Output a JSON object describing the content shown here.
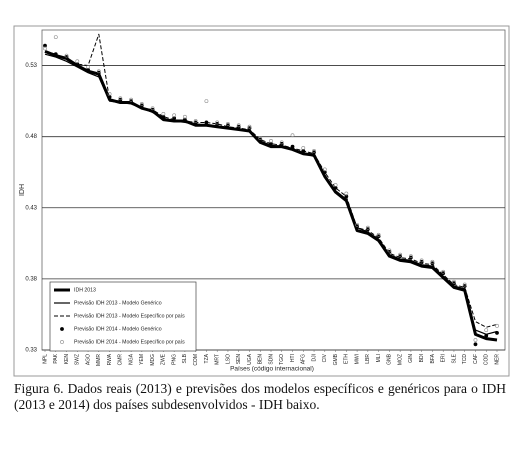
{
  "chart_data": {
    "type": "line",
    "y_label": "IDH",
    "x_label": "Países (código internacional)",
    "caption": "Figura 6. Dados reais (2013) e previsões dos modelos específicos e genéricos para o IDH (2013 e 2014) dos países subdesenvolvidos - IDH baixo.",
    "categories": [
      "NPL",
      "PAK",
      "KEN",
      "SWZ",
      "AGO",
      "MMR",
      "RWA",
      "CMR",
      "NGA",
      "YEM",
      "MDG",
      "ZWE",
      "PNG",
      "SLB",
      "COM",
      "TZA",
      "MRT",
      "LSO",
      "SEN",
      "UGA",
      "BEN",
      "SDN",
      "TGO",
      "HTI",
      "AFG",
      "DJI",
      "CIV",
      "GMB",
      "ETH",
      "MWI",
      "LBR",
      "MLI",
      "GNB",
      "MOZ",
      "GIN",
      "BDI",
      "BFA",
      "ERI",
      "SLE",
      "TCD",
      "CAF",
      "COD",
      "NER"
    ],
    "ylim": [
      0.33,
      0.555
    ],
    "yticks": [
      0.33,
      0.38,
      0.43,
      0.48,
      0.53
    ],
    "grid": true,
    "legend": "lower left",
    "series": [
      {
        "name": "IDH 2013",
        "color": "#000000",
        "kind": "line",
        "width": 3,
        "dash": false,
        "values": [
          0.54,
          0.537,
          0.535,
          0.53,
          0.526,
          0.524,
          0.506,
          0.504,
          0.504,
          0.5,
          0.498,
          0.492,
          0.491,
          0.491,
          0.488,
          0.488,
          0.487,
          0.486,
          0.485,
          0.484,
          0.476,
          0.473,
          0.473,
          0.471,
          0.468,
          0.467,
          0.452,
          0.441,
          0.435,
          0.414,
          0.412,
          0.407,
          0.396,
          0.393,
          0.392,
          0.389,
          0.388,
          0.381,
          0.374,
          0.372,
          0.341,
          0.338,
          0.337
        ]
      },
      {
        "name": "Previsão IDH 2013 - Modelo Genérico",
        "color": "#000000",
        "kind": "line",
        "width": 1.2,
        "dash": false,
        "values": [
          0.538,
          0.536,
          0.533,
          0.529,
          0.525,
          0.522,
          0.505,
          0.504,
          0.503,
          0.5,
          0.497,
          0.493,
          0.491,
          0.49,
          0.489,
          0.488,
          0.487,
          0.486,
          0.485,
          0.484,
          0.477,
          0.474,
          0.473,
          0.471,
          0.469,
          0.466,
          0.453,
          0.442,
          0.436,
          0.416,
          0.413,
          0.408,
          0.397,
          0.394,
          0.393,
          0.39,
          0.389,
          0.382,
          0.375,
          0.373,
          0.344,
          0.341,
          0.343
        ]
      },
      {
        "name": "Previsão IDH 2013 - Modelo Específico por país",
        "color": "#000000",
        "kind": "line",
        "width": 1,
        "dash": true,
        "values": [
          0.54,
          0.538,
          0.534,
          0.531,
          0.53,
          0.552,
          0.506,
          0.505,
          0.503,
          0.5,
          0.499,
          0.494,
          0.492,
          0.491,
          0.49,
          0.49,
          0.489,
          0.487,
          0.486,
          0.485,
          0.478,
          0.475,
          0.474,
          0.472,
          0.47,
          0.468,
          0.455,
          0.444,
          0.438,
          0.416,
          0.414,
          0.409,
          0.398,
          0.395,
          0.394,
          0.391,
          0.39,
          0.383,
          0.376,
          0.374,
          0.35,
          0.346,
          0.348
        ]
      },
      {
        "name": "Previsão IDH 2014 - Modelo Genérico",
        "color": "#000000",
        "kind": "marker",
        "marker": "filled",
        "values": [
          0.544,
          0.538,
          0.536,
          0.531,
          0.527,
          0.525,
          0.508,
          0.506,
          0.505,
          0.502,
          0.499,
          0.494,
          0.493,
          0.492,
          0.49,
          0.49,
          0.489,
          0.488,
          0.487,
          0.486,
          0.478,
          0.475,
          0.475,
          0.473,
          0.47,
          0.469,
          0.455,
          0.444,
          0.438,
          0.417,
          0.415,
          0.41,
          0.399,
          0.396,
          0.395,
          0.392,
          0.391,
          0.384,
          0.377,
          0.375,
          0.334,
          0.34,
          0.342
        ]
      },
      {
        "name": "Previsão IDH 2014 - Modelo Específico por país",
        "color": "#888888",
        "kind": "marker",
        "marker": "open",
        "values": [
          0.542,
          0.55,
          0.537,
          0.533,
          0.529,
          0.526,
          0.51,
          0.507,
          0.506,
          0.503,
          0.5,
          0.496,
          0.495,
          0.494,
          0.491,
          0.505,
          0.49,
          0.489,
          0.488,
          0.487,
          0.479,
          0.477,
          0.476,
          0.481,
          0.472,
          0.47,
          0.457,
          0.446,
          0.44,
          0.418,
          0.416,
          0.411,
          0.4,
          0.397,
          0.396,
          0.393,
          0.392,
          0.385,
          0.378,
          0.376,
          0.337,
          0.344,
          0.347
        ]
      }
    ]
  }
}
